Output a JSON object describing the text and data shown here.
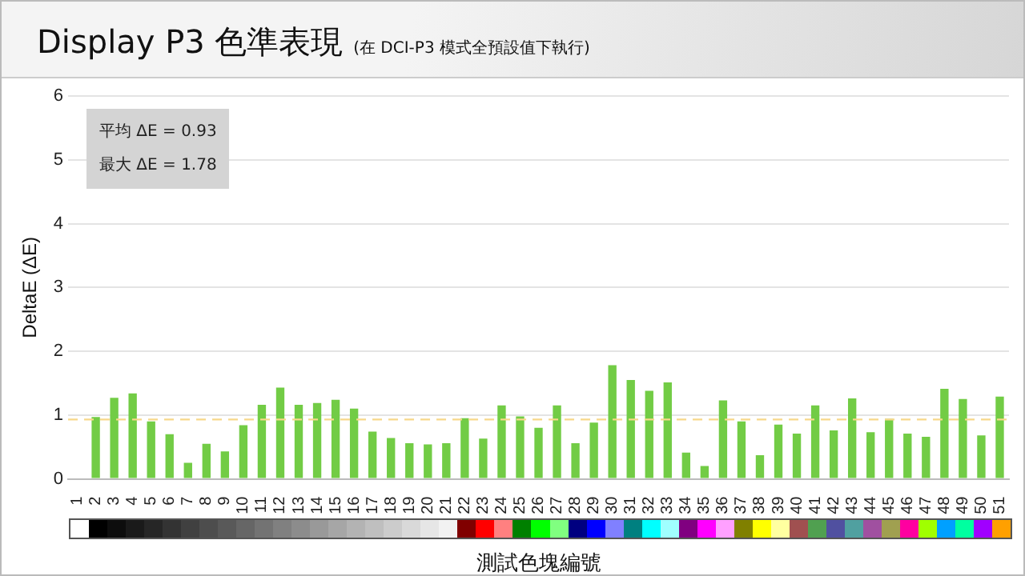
{
  "chart_data": {
    "type": "bar",
    "title": "Display P3 色準表現",
    "subtitle": "(在 DCI-P3 模式全預設值下執行)",
    "xlabel": "測試色塊編號",
    "ylabel": "DeltaE (ΔE)",
    "categories": [
      "1",
      "2",
      "3",
      "4",
      "5",
      "6",
      "7",
      "8",
      "9",
      "10",
      "11",
      "12",
      "13",
      "14",
      "15",
      "16",
      "17",
      "18",
      "19",
      "20",
      "21",
      "22",
      "23",
      "24",
      "25",
      "26",
      "27",
      "28",
      "29",
      "30",
      "31",
      "32",
      "33",
      "34",
      "35",
      "36",
      "37",
      "38",
      "39",
      "40",
      "41",
      "42",
      "43",
      "44",
      "45",
      "46",
      "47",
      "48",
      "49",
      "50",
      "51"
    ],
    "values": [
      0,
      0.97,
      1.27,
      1.34,
      0.9,
      0.7,
      0.25,
      0.55,
      0.43,
      0.84,
      1.16,
      1.43,
      1.16,
      1.19,
      1.24,
      1.1,
      0.74,
      0.64,
      0.56,
      0.54,
      0.56,
      0.95,
      0.63,
      1.15,
      0.98,
      0.8,
      1.15,
      0.56,
      0.88,
      1.78,
      1.55,
      1.38,
      1.51,
      0.41,
      0.2,
      1.23,
      0.9,
      0.37,
      0.85,
      0.71,
      1.15,
      0.76,
      1.26,
      0.73,
      0.94,
      0.71,
      0.66,
      1.41,
      1.25,
      0.68,
      1.29
    ],
    "color": "#72cc45",
    "ylim": [
      0,
      6
    ],
    "yticks": [
      0,
      1,
      2,
      3,
      4,
      5,
      6
    ],
    "grid": "y",
    "ref_lines": [
      {
        "axis": "y",
        "value": 0.93,
        "color": "#f7d88a",
        "line_style": "dashed"
      }
    ],
    "annotations": [
      "平均 ΔE = 0.93",
      "最大 ΔE = 1.78"
    ],
    "legend": false
  }
}
